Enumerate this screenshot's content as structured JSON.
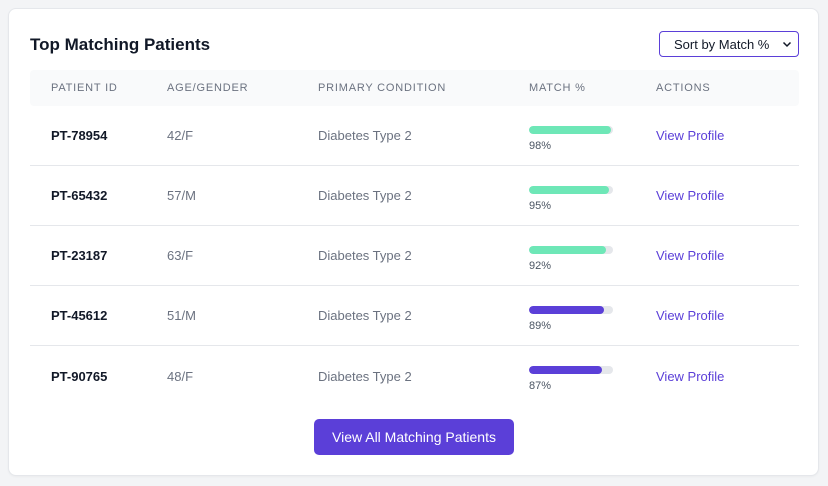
{
  "card": {
    "title": "Top Matching Patients",
    "sort": {
      "value": "Sort by Match %"
    }
  },
  "table": {
    "headers": [
      "Patient ID",
      "Age/Gender",
      "Primary Condition",
      "Match %",
      "Actions"
    ],
    "rows": [
      {
        "id": "PT-78954",
        "age_gender": "42/F",
        "condition": "Diabetes Type 2",
        "match": 98,
        "match_label": "98%",
        "action": "View Profile",
        "bar_color": "#6ee7b7"
      },
      {
        "id": "PT-65432",
        "age_gender": "57/M",
        "condition": "Diabetes Type 2",
        "match": 95,
        "match_label": "95%",
        "action": "View Profile",
        "bar_color": "#6ee7b7"
      },
      {
        "id": "PT-23187",
        "age_gender": "63/F",
        "condition": "Diabetes Type 2",
        "match": 92,
        "match_label": "92%",
        "action": "View Profile",
        "bar_color": "#6ee7b7"
      },
      {
        "id": "PT-45612",
        "age_gender": "51/M",
        "condition": "Diabetes Type 2",
        "match": 89,
        "match_label": "89%",
        "action": "View Profile",
        "bar_color": "#5b3fd8"
      },
      {
        "id": "PT-90765",
        "age_gender": "48/F",
        "condition": "Diabetes Type 2",
        "match": 87,
        "match_label": "87%",
        "action": "View Profile",
        "bar_color": "#5b3fd8"
      }
    ]
  },
  "footer": {
    "view_all_label": "View All Matching Patients"
  },
  "colors": {
    "accent": "#5b3fd8",
    "high_match": "#6ee7b7",
    "track": "#e5e7eb"
  }
}
